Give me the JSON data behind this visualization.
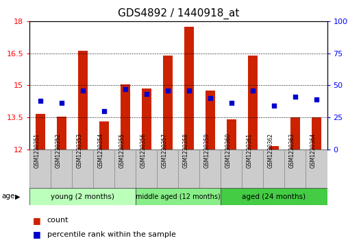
{
  "title": "GDS4892 / 1440918_at",
  "samples": [
    "GSM1230351",
    "GSM1230352",
    "GSM1230353",
    "GSM1230354",
    "GSM1230355",
    "GSM1230356",
    "GSM1230357",
    "GSM1230358",
    "GSM1230359",
    "GSM1230360",
    "GSM1230361",
    "GSM1230362",
    "GSM1230363",
    "GSM1230364"
  ],
  "count_values": [
    13.65,
    13.55,
    16.6,
    13.3,
    15.05,
    14.85,
    16.4,
    17.75,
    14.75,
    13.4,
    16.4,
    12.15,
    13.5,
    13.5
  ],
  "percentile_values": [
    38,
    36,
    46,
    30,
    47,
    43,
    46,
    46,
    40,
    36,
    46,
    34,
    41,
    39
  ],
  "ylim_left": [
    12,
    18
  ],
  "ylim_right": [
    0,
    100
  ],
  "yticks_left": [
    12,
    13.5,
    15,
    16.5,
    18
  ],
  "yticks_right": [
    0,
    25,
    50,
    75,
    100
  ],
  "bar_color": "#CC2200",
  "dot_color": "#0000CC",
  "groups": [
    {
      "label": "young (2 months)",
      "start": 0,
      "end": 4,
      "color": "#bbffbb"
    },
    {
      "label": "middle aged (12 months)",
      "start": 5,
      "end": 8,
      "color": "#88ee88"
    },
    {
      "label": "aged (24 months)",
      "start": 9,
      "end": 13,
      "color": "#44cc44"
    }
  ],
  "xlabel_age": "age",
  "legend_count": "count",
  "legend_percentile": "percentile rank within the sample",
  "title_fontsize": 11,
  "tick_fontsize": 8,
  "label_fontsize": 6,
  "group_fontsize": 7.5
}
